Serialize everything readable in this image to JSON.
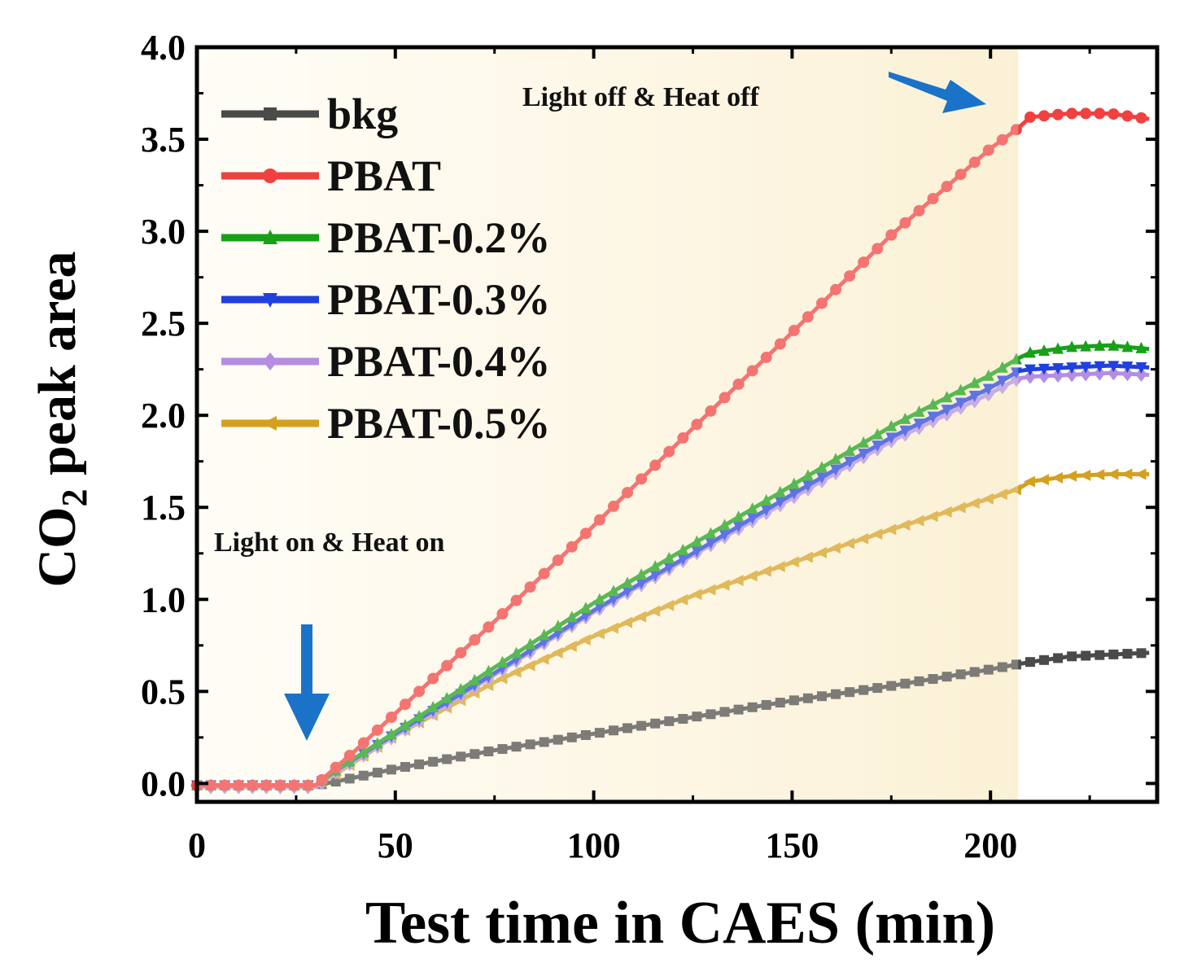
{
  "chart_data": {
    "type": "line",
    "xlabel": "Test time in CAES (min)",
    "ylabel": {
      "pre": "CO",
      "sub": "2",
      "post": " peak area"
    },
    "xlim": [
      0,
      242
    ],
    "ylim": [
      -0.1,
      4.0
    ],
    "xticks": [
      0,
      50,
      100,
      150,
      200
    ],
    "yticks": [
      0.0,
      0.5,
      1.0,
      1.5,
      2.0,
      2.5,
      3.0,
      3.5,
      4.0
    ],
    "x_tick_labels": [
      "0",
      "50",
      "100",
      "150",
      "200"
    ],
    "y_tick_labels": [
      "0.0",
      "0.5",
      "1.0",
      "1.5",
      "2.0",
      "2.5",
      "3.0",
      "3.5",
      "4.0"
    ],
    "shaded_region": {
      "x_start": 0,
      "x_end": 207,
      "color": "#fbf3dc"
    },
    "legend_position": "top-left",
    "annotations": [
      {
        "text": "Light off & Heat off",
        "x": 165,
        "y": 3.72,
        "arrow_to": [
          200,
          3.65
        ]
      },
      {
        "text": "Light on & Heat on",
        "x": 40,
        "y": 1.3,
        "arrow_to": [
          27,
          0.25
        ]
      }
    ],
    "series": [
      {
        "name": "bkg",
        "color": "#4a4a4a",
        "marker": "square",
        "x": [
          0,
          10,
          20,
          30,
          35,
          50,
          75,
          100,
          125,
          150,
          175,
          200,
          210,
          220,
          240
        ],
        "values": [
          -0.01,
          -0.01,
          -0.01,
          -0.01,
          0.01,
          0.08,
          0.18,
          0.27,
          0.36,
          0.45,
          0.53,
          0.62,
          0.66,
          0.69,
          0.71
        ]
      },
      {
        "name": "PBAT",
        "color": "#f04040",
        "marker": "circle",
        "x": [
          0,
          10,
          20,
          30,
          33,
          40,
          50,
          60,
          75,
          100,
          125,
          150,
          175,
          200,
          207,
          210,
          220,
          230,
          240
        ],
        "values": [
          -0.01,
          -0.01,
          -0.01,
          -0.01,
          0.05,
          0.18,
          0.38,
          0.58,
          0.88,
          1.4,
          1.93,
          2.45,
          2.98,
          3.45,
          3.56,
          3.62,
          3.64,
          3.64,
          3.61
        ]
      },
      {
        "name": "PBAT-0.2%",
        "color": "#18a018",
        "marker": "triangle-up",
        "x": [
          0,
          10,
          20,
          30,
          35,
          50,
          75,
          100,
          125,
          150,
          175,
          200,
          207,
          210,
          220,
          230,
          240
        ],
        "values": [
          -0.01,
          -0.01,
          -0.01,
          -0.01,
          0.07,
          0.28,
          0.63,
          0.98,
          1.3,
          1.62,
          1.94,
          2.22,
          2.31,
          2.34,
          2.37,
          2.38,
          2.36
        ]
      },
      {
        "name": "PBAT-0.3%",
        "color": "#2040e0",
        "marker": "triangle-down",
        "x": [
          0,
          10,
          20,
          30,
          35,
          50,
          75,
          100,
          125,
          150,
          175,
          200,
          207,
          210,
          220,
          230,
          240
        ],
        "values": [
          -0.01,
          -0.01,
          -0.01,
          -0.01,
          0.07,
          0.27,
          0.6,
          0.94,
          1.25,
          1.57,
          1.88,
          2.15,
          2.24,
          2.25,
          2.26,
          2.27,
          2.26
        ]
      },
      {
        "name": "PBAT-0.4%",
        "color": "#b48ee0",
        "marker": "diamond",
        "x": [
          0,
          10,
          20,
          30,
          35,
          50,
          75,
          100,
          125,
          150,
          175,
          200,
          207,
          210,
          220,
          230,
          240
        ],
        "values": [
          -0.02,
          -0.02,
          -0.02,
          -0.02,
          0.06,
          0.26,
          0.59,
          0.93,
          1.24,
          1.55,
          1.86,
          2.12,
          2.2,
          2.21,
          2.22,
          2.23,
          2.22
        ]
      },
      {
        "name": "PBAT-0.5%",
        "color": "#d4a020",
        "marker": "triangle-left",
        "x": [
          0,
          10,
          20,
          30,
          35,
          50,
          75,
          100,
          125,
          150,
          175,
          200,
          207,
          210,
          220,
          230,
          240
        ],
        "values": [
          -0.01,
          -0.01,
          -0.01,
          -0.01,
          0.05,
          0.26,
          0.55,
          0.8,
          1.02,
          1.2,
          1.38,
          1.55,
          1.6,
          1.64,
          1.67,
          1.68,
          1.68
        ]
      }
    ]
  }
}
